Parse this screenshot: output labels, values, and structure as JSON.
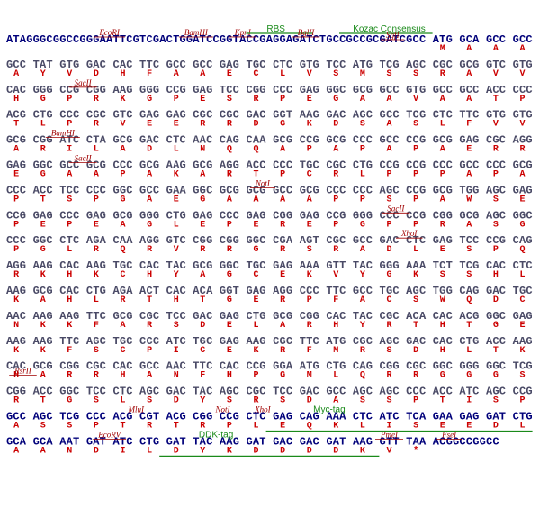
{
  "lines": [
    {
      "seq": "ATAGGGCGGCCGGGAATTCGTCGACTGGATCCGGTACCGAGGAGATCTGCCGCCGCGATCGCC ATG GCA GCC GCC",
      "aa": [
        "M",
        "A",
        "A",
        "A"
      ],
      "features": [
        "EcoRI",
        "BamHI",
        "KpnI",
        "RBS",
        "BglII",
        "Kozac Consensus",
        "SgfI"
      ]
    },
    {
      "seq": "GCC TAT GTG GAC CAC TTC GCC GCC GAG TGC CTC GTG TCC ATG TCG AGC CGC GCG GTC GTG",
      "aa": [
        "A",
        "Y",
        "V",
        "D",
        "H",
        "F",
        "A",
        "A",
        "E",
        "C",
        "L",
        "V",
        "S",
        "M",
        "S",
        "S",
        "R",
        "A",
        "V",
        "V"
      ],
      "features": []
    },
    {
      "seq": "CAC GGG CCG CGG AAG GGG CCG GAG TCC CGG CCC GAG GGC GCG GCC GTG GCC GCC ACC CCC",
      "aa": [
        "H",
        "G",
        "P",
        "R",
        "K",
        "G",
        "P",
        "E",
        "S",
        "R",
        "P",
        "E",
        "G",
        "A",
        "A",
        "V",
        "A",
        "A",
        "T",
        "P"
      ],
      "features": [
        "SacII"
      ]
    },
    {
      "seq": "ACG CTG CCC CGC GTC GAG GAG CGC CGC GAC GGT AAG GAC AGC GCC TCG CTC TTC GTG GTG",
      "aa": [
        "T",
        "L",
        "P",
        "R",
        "V",
        "E",
        "E",
        "R",
        "R",
        "D",
        "G",
        "K",
        "D",
        "S",
        "A",
        "S",
        "L",
        "F",
        "V",
        "V"
      ],
      "features": []
    },
    {
      "seq": "GCG CGG ATC CTA GCG GAC CTC AAC CAG CAA GCG CCG GCG CCC GCC CCG GCG GAG CGC AGG",
      "aa": [
        "A",
        "R",
        "I",
        "L",
        "A",
        "D",
        "L",
        "N",
        "Q",
        "Q",
        "A",
        "P",
        "A",
        "P",
        "A",
        "P",
        "A",
        "E",
        "R",
        "R"
      ],
      "features": [
        "BamHI"
      ]
    },
    {
      "seq": "GAG GGC GCC GCG CCC GCG AAG GCG AGG ACC CCC TGC CGC CTG CCG CCG CCC GCC CCC GCG",
      "aa": [
        "E",
        "G",
        "A",
        "A",
        "P",
        "A",
        "K",
        "A",
        "R",
        "T",
        "P",
        "C",
        "R",
        "L",
        "P",
        "P",
        "P",
        "A",
        "P",
        "A"
      ],
      "features": [
        "SacII"
      ]
    },
    {
      "seq": "CCC ACC TCC CCC GGC GCC GAA GGC GCG GCG GCC GCG CCC CCC AGC CCG GCG TGG AGC GAG",
      "aa": [
        "P",
        "T",
        "S",
        "P",
        "G",
        "A",
        "E",
        "G",
        "A",
        "A",
        "A",
        "A",
        "P",
        "P",
        "S",
        "P",
        "A",
        "W",
        "S",
        "E"
      ],
      "features": [
        "NotI"
      ]
    },
    {
      "seq": "CCG GAG CCC GAG GCG GGG CTG GAG CCC GAG CGG GAG CCG GGG CCC CCG CGG GCG AGC GGC",
      "aa": [
        "P",
        "E",
        "P",
        "E",
        "A",
        "G",
        "L",
        "E",
        "P",
        "E",
        "R",
        "E",
        "P",
        "G",
        "P",
        "P",
        "R",
        "A",
        "S",
        "G"
      ],
      "features": [
        "SacII"
      ]
    },
    {
      "seq": "CCC GGC CTC AGA CAA AGG GTC CGG CGG GGC CGA AGT CGC GCC GAC CTC GAG TCC CCG CAG",
      "aa": [
        "P",
        "G",
        "L",
        "R",
        "Q",
        "R",
        "V",
        "R",
        "R",
        "G",
        "R",
        "S",
        "R",
        "A",
        "D",
        "L",
        "E",
        "S",
        "P",
        "Q"
      ],
      "features": [
        "XhoI"
      ]
    },
    {
      "seq": "AGG AAG CAC AAG TGC CAC TAC GCG GGC TGC GAG AAA GTT TAC GGG AAA TCT TCG CAC CTC",
      "aa": [
        "R",
        "K",
        "H",
        "K",
        "C",
        "H",
        "Y",
        "A",
        "G",
        "C",
        "E",
        "K",
        "V",
        "Y",
        "G",
        "K",
        "S",
        "S",
        "H",
        "L"
      ],
      "features": []
    },
    {
      "seq": "AAG GCG CAC CTG AGA ACT CAC ACA GGT GAG AGG CCC TTC GCC TGC AGC TGG CAG GAC TGC",
      "aa": [
        "K",
        "A",
        "H",
        "L",
        "R",
        "T",
        "H",
        "T",
        "G",
        "E",
        "R",
        "P",
        "F",
        "A",
        "C",
        "S",
        "W",
        "Q",
        "D",
        "C"
      ],
      "features": []
    },
    {
      "seq": "AAC AAG AAG TTC GCG CGC TCC GAC GAG CTG GCG CGG CAC TAC CGC ACA CAC ACG GGC GAG",
      "aa": [
        "N",
        "K",
        "K",
        "F",
        "A",
        "R",
        "S",
        "D",
        "E",
        "L",
        "A",
        "R",
        "H",
        "Y",
        "R",
        "T",
        "H",
        "T",
        "G",
        "E"
      ],
      "features": []
    },
    {
      "seq": "AAG AAG TTC AGC TGC CCC ATC TGC GAG AAG CGC TTC ATG CGC AGC GAC CAC CTG ACC AAG",
      "aa": [
        "K",
        "K",
        "F",
        "S",
        "C",
        "P",
        "I",
        "C",
        "E",
        "K",
        "R",
        "F",
        "M",
        "R",
        "S",
        "D",
        "H",
        "L",
        "T",
        "K"
      ],
      "features": []
    },
    {
      "seq": "CAC GCG CGG CGC CAC GCC AAC TTC CAC CCG GGA ATG CTG CAG CGG CGC GGC GGG GGC TCG",
      "aa": [
        "H",
        "A",
        "R",
        "R",
        "H",
        "A",
        "N",
        "F",
        "H",
        "P",
        "G",
        "M",
        "L",
        "Q",
        "R",
        "R",
        "G",
        "G",
        "G",
        "S"
      ],
      "features": []
    },
    {
      "seq": "CGG ACC GGC TCC CTC AGC GAC TAC AGC CGC TCC GAC GCC AGC AGC CCC ACC ATC AGC CCG",
      "aa": [
        "R",
        "T",
        "G",
        "S",
        "L",
        "S",
        "D",
        "Y",
        "S",
        "R",
        "S",
        "D",
        "A",
        "S",
        "S",
        "P",
        "T",
        "I",
        "S",
        "P"
      ],
      "features": [
        "RsrII"
      ]
    },
    {
      "seq": "GCC AGC TCG CCC ACG CGT ACG CGG CCG CTC GAG CAG AAA CTC ATC TCA GAA GAG GAT CTG",
      "aa": [
        "A",
        "S",
        "S",
        "P",
        "T",
        "R",
        "T",
        "R",
        "P",
        "L",
        "E",
        "Q",
        "K",
        "L",
        "I",
        "S",
        "E",
        "E",
        "D",
        "L"
      ],
      "features": [
        "MluI",
        "NotI",
        "XhoI",
        "Myc-tag"
      ]
    },
    {
      "seq": "GCA GCA AAT GAT ATC CTG GAT TAC AAG GAT GAC GAC GAT AAG GTT TAA ACGGCCGGCC",
      "aa": [
        "A",
        "A",
        "N",
        "D",
        "I",
        "L",
        "D",
        "Y",
        "K",
        "D",
        "D",
        "D",
        "D",
        "K",
        "V",
        "*"
      ],
      "features": [
        "EcoRV",
        "DDK-tag",
        "PmeI",
        "FseI"
      ]
    }
  ]
}
